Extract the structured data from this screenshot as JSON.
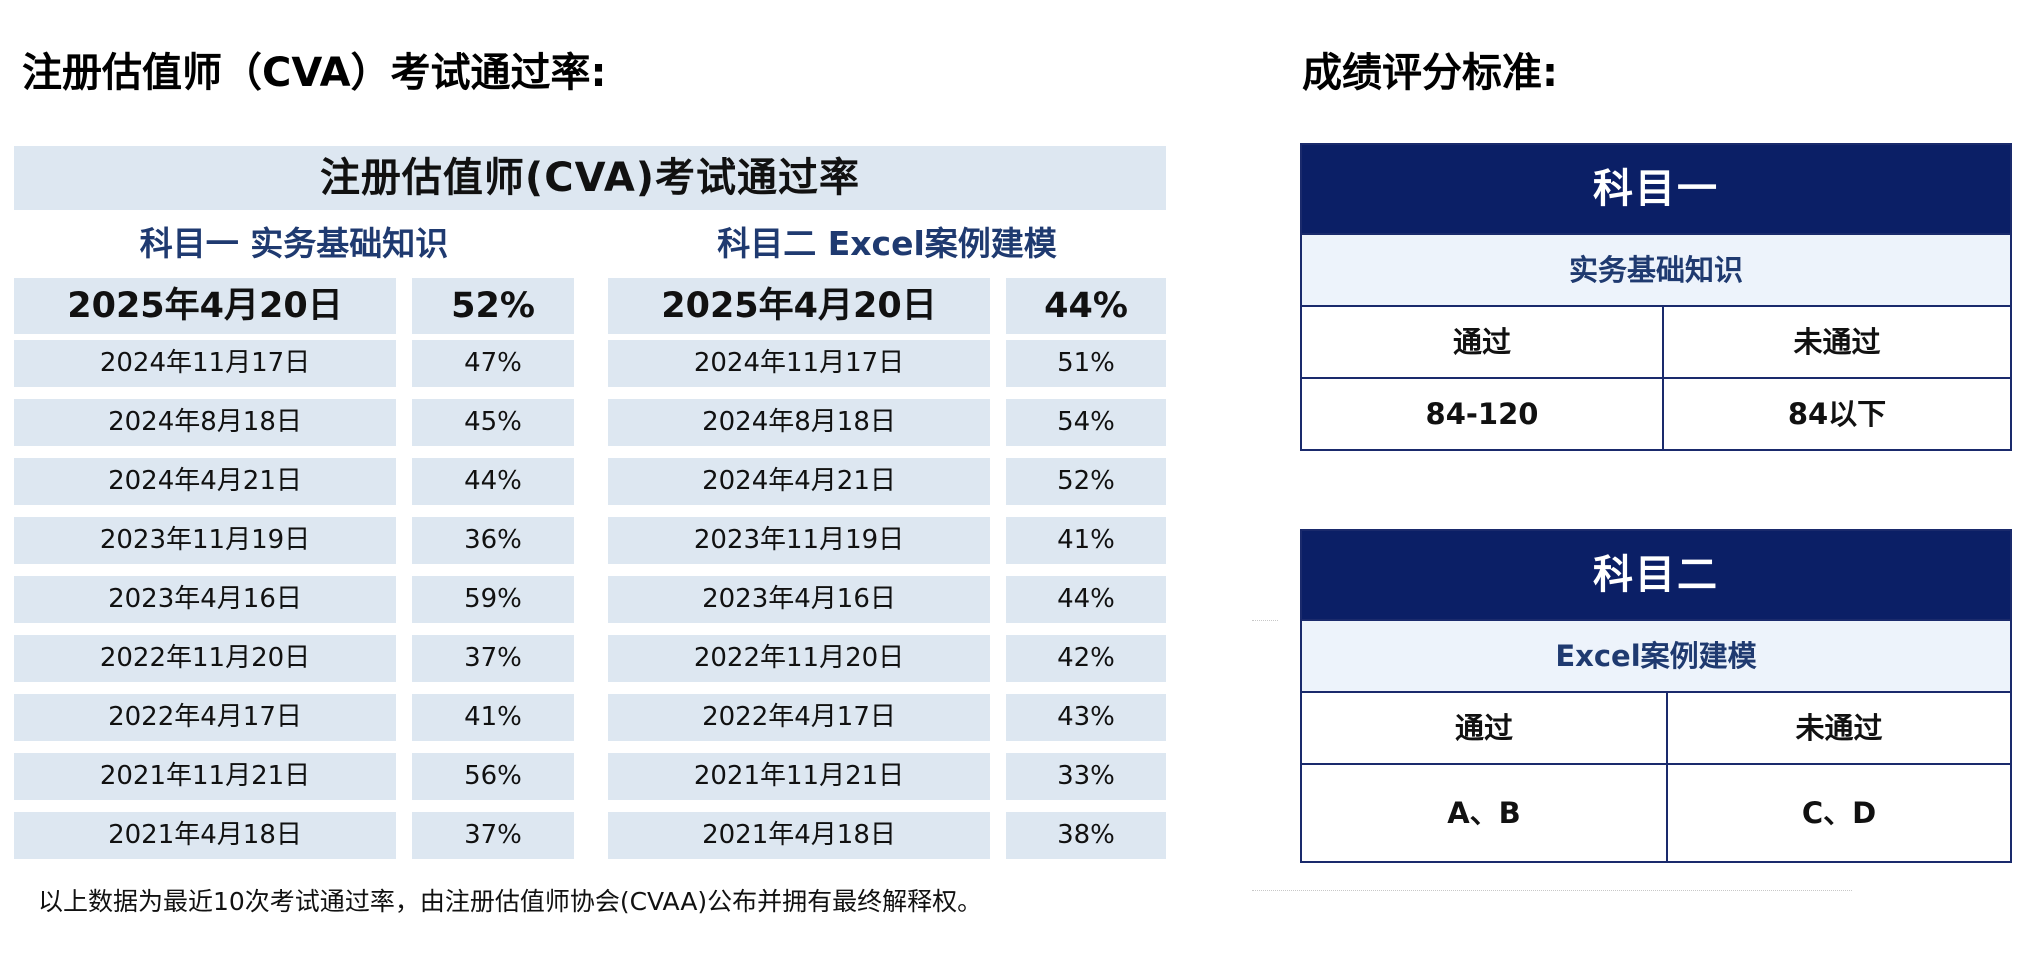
{
  "left_heading": "注册估值师（CVA）考试通过率:",
  "right_heading": "成绩评分标准:",
  "pass_rate_table": {
    "title": "注册估值师(CVA)考试通过率",
    "subject1_title": "科目一  实务基础知识",
    "subject2_title": "科目二  Excel案例建模",
    "rows": [
      {
        "date1": "2025年4月20日",
        "rate1": "52%",
        "date2": "2025年4月20日",
        "rate2": "44%"
      },
      {
        "date1": "2024年11月17日",
        "rate1": "47%",
        "date2": "2024年11月17日",
        "rate2": "51%"
      },
      {
        "date1": "2024年8月18日",
        "rate1": "45%",
        "date2": "2024年8月18日",
        "rate2": "54%"
      },
      {
        "date1": "2024年4月21日",
        "rate1": "44%",
        "date2": "2024年4月21日",
        "rate2": "52%"
      },
      {
        "date1": "2023年11月19日",
        "rate1": "36%",
        "date2": "2023年11月19日",
        "rate2": "41%"
      },
      {
        "date1": "2023年4月16日",
        "rate1": "59%",
        "date2": "2023年4月16日",
        "rate2": "44%"
      },
      {
        "date1": "2022年11月20日",
        "rate1": "37%",
        "date2": "2022年11月20日",
        "rate2": "42%"
      },
      {
        "date1": "2022年4月17日",
        "rate1": "41%",
        "date2": "2022年4月17日",
        "rate2": "43%"
      },
      {
        "date1": "2021年11月21日",
        "rate1": "56%",
        "date2": "2021年11月21日",
        "rate2": "33%"
      },
      {
        "date1": "2021年4月18日",
        "rate1": "37%",
        "date2": "2021年4月18日",
        "rate2": "38%"
      }
    ],
    "footnote": "以上数据为最近10次考试通过率，由注册估值师协会(CVAA)公布并拥有最终解释权。"
  },
  "scoring": {
    "subject1": {
      "header": "科目一",
      "sub": "实务基础知识",
      "pass_label": "通过",
      "fail_label": "未通过",
      "pass_value": "84-120",
      "fail_value": "84以下"
    },
    "subject2": {
      "header": "科目二",
      "sub": "Excel案例建模",
      "pass_label": "通过",
      "fail_label": "未通过",
      "pass_value": "A、B",
      "fail_value": "C、D"
    }
  },
  "colors": {
    "panel_bg": "#dde7f1",
    "subject_title": "#1f3a70",
    "score_header_bg": "#0b1f66",
    "score_sub_bg": "#edf3fb",
    "score_border": "#1a2a6c"
  }
}
